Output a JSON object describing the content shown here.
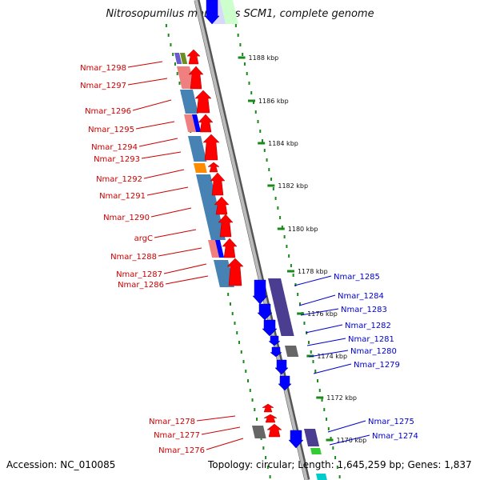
{
  "title": "Nitrosopumilus maritimus SCM1, complete genome",
  "footer": {
    "accession": "Accession: NC_010085",
    "summary": "Topology: circular; Length: 1,645,259 bp; Genes: 1,837"
  },
  "scale_ticks": [
    "1188 kbp",
    "1186 kbp",
    "1184 kbp",
    "1182 kbp",
    "1180 kbp",
    "1178 kbp",
    "1176 kbp",
    "1174 kbp",
    "1172 kbp",
    "1170 kbp"
  ],
  "left_genes": [
    "Nmar_1298",
    "Nmar_1297",
    "Nmar_1296",
    "Nmar_1295",
    "Nmar_1294",
    "Nmar_1293",
    "Nmar_1292",
    "Nmar_1291",
    "Nmar_1290",
    "argC",
    "Nmar_1288",
    "Nmar_1287",
    "Nmar_1286",
    "Nmar_1278",
    "Nmar_1277",
    "Nmar_1276"
  ],
  "right_genes": [
    "Nmar_1285",
    "Nmar_1284",
    "Nmar_1283",
    "Nmar_1282",
    "Nmar_1281",
    "Nmar_1280",
    "Nmar_1279",
    "Nmar_1275",
    "Nmar_1274"
  ],
  "colors": {
    "forward": "#ff0000",
    "reverse": "#0000ff",
    "backbone": "#888888",
    "tick": "#1a8a1a"
  }
}
